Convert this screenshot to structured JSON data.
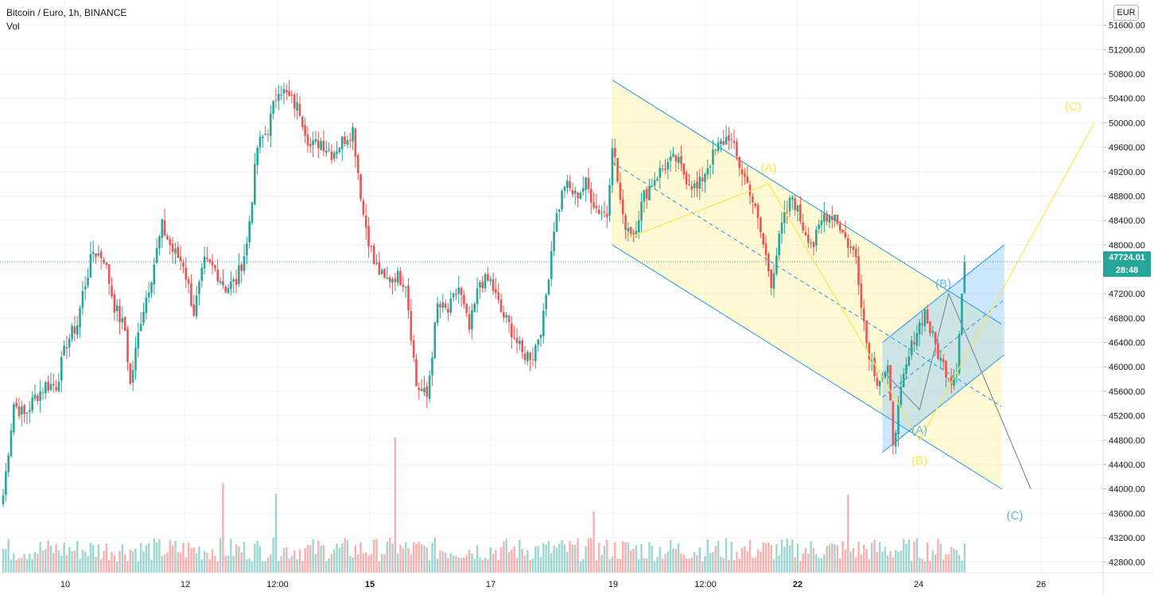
{
  "legend": {
    "symbol": "Bitcoin / Euro, 1h, BINANCE",
    "volume": "Vol"
  },
  "currency_badge": "EUR",
  "last_price": {
    "value": "47724.01",
    "countdown": "28:48"
  },
  "colors": {
    "up": "#26a69a",
    "down": "#ef5350",
    "channel": "#2196f3",
    "channel_fill": "#fff59d",
    "wave_yellow": "#fbe54d",
    "wave_blue": "#64b5f6",
    "grid": "#eef0f3"
  },
  "chart_data": {
    "type": "candlestick",
    "title": "Bitcoin / Euro, 1h, BINANCE",
    "ylim": [
      42600,
      51700
    ],
    "y_ticks": [
      51600,
      51200,
      50800,
      50400,
      50000,
      49600,
      49200,
      48800,
      48400,
      48000,
      47600,
      47200,
      46800,
      46400,
      46000,
      45600,
      45200,
      44800,
      44400,
      44000,
      43600,
      43200,
      42800
    ],
    "y_tick_labels": [
      "51600.00",
      "51200.00",
      "50800.00",
      "50400.00",
      "50000.00",
      "49600.00",
      "49200.00",
      "48800.00",
      "48400.00",
      "48000.00",
      "47600.00",
      "47200.00",
      "46800.00",
      "46400.00",
      "46000.00",
      "45600.00",
      "45200.00",
      "44800.00",
      "44400.00",
      "44000.00",
      "43600.00",
      "43200.00",
      "42800.00"
    ],
    "x_ticks": [
      "10",
      "12",
      "12:00",
      "15",
      "17",
      "19",
      "12:00",
      "22",
      "24",
      "26"
    ],
    "x_ticks_bold": [
      false,
      false,
      false,
      true,
      false,
      false,
      false,
      true,
      false,
      false
    ],
    "price_anchors": [
      [
        0,
        43900
      ],
      [
        4,
        45400
      ],
      [
        8,
        45200
      ],
      [
        12,
        45500
      ],
      [
        16,
        45700
      ],
      [
        20,
        45700
      ],
      [
        24,
        46400
      ],
      [
        28,
        46700
      ],
      [
        30,
        47200
      ],
      [
        34,
        47900
      ],
      [
        38,
        47800
      ],
      [
        42,
        47000
      ],
      [
        46,
        46600
      ],
      [
        48,
        45700
      ],
      [
        52,
        46800
      ],
      [
        56,
        47500
      ],
      [
        60,
        48300
      ],
      [
        64,
        47900
      ],
      [
        68,
        47700
      ],
      [
        72,
        46900
      ],
      [
        76,
        47700
      ],
      [
        80,
        47600
      ],
      [
        84,
        47300
      ],
      [
        88,
        47400
      ],
      [
        92,
        48000
      ],
      [
        96,
        49600
      ],
      [
        100,
        49900
      ],
      [
        104,
        50600
      ],
      [
        108,
        50400
      ],
      [
        112,
        50200
      ],
      [
        116,
        49600
      ],
      [
        120,
        49700
      ],
      [
        124,
        49500
      ],
      [
        128,
        49700
      ],
      [
        132,
        49900
      ],
      [
        136,
        48500
      ],
      [
        140,
        47700
      ],
      [
        144,
        47400
      ],
      [
        148,
        47500
      ],
      [
        152,
        47400
      ],
      [
        156,
        45700
      ],
      [
        160,
        45500
      ],
      [
        164,
        47000
      ],
      [
        168,
        46900
      ],
      [
        172,
        47300
      ],
      [
        176,
        46600
      ],
      [
        180,
        47400
      ],
      [
        184,
        47400
      ],
      [
        188,
        46900
      ],
      [
        192,
        46600
      ],
      [
        196,
        46200
      ],
      [
        200,
        46200
      ],
      [
        204,
        46800
      ],
      [
        208,
        48300
      ],
      [
        212,
        49000
      ],
      [
        216,
        48800
      ],
      [
        220,
        49000
      ],
      [
        224,
        48600
      ],
      [
        228,
        48500
      ],
      [
        230,
        49700
      ],
      [
        234,
        48400
      ],
      [
        238,
        48200
      ],
      [
        242,
        48800
      ],
      [
        246,
        49100
      ],
      [
        250,
        49300
      ],
      [
        254,
        49400
      ],
      [
        258,
        49100
      ],
      [
        262,
        48900
      ],
      [
        266,
        49300
      ],
      [
        270,
        49600
      ],
      [
        274,
        49800
      ],
      [
        278,
        49300
      ],
      [
        282,
        48900
      ],
      [
        286,
        48200
      ],
      [
        290,
        47400
      ],
      [
        294,
        48300
      ],
      [
        298,
        48800
      ],
      [
        302,
        48300
      ],
      [
        306,
        48000
      ],
      [
        310,
        48500
      ],
      [
        314,
        48500
      ],
      [
        318,
        48100
      ],
      [
        322,
        47800
      ],
      [
        326,
        46400
      ],
      [
        330,
        45800
      ],
      [
        334,
        45900
      ],
      [
        336,
        44800
      ],
      [
        340,
        45800
      ],
      [
        344,
        46500
      ],
      [
        348,
        46900
      ],
      [
        350,
        46600
      ],
      [
        354,
        46100
      ],
      [
        358,
        45800
      ],
      [
        360,
        46000
      ],
      [
        363,
        47800
      ]
    ],
    "last_close": 47724.01,
    "channels": [
      {
        "name": "yellow-descending-channel",
        "upper": [
          [
            230,
            50700
          ],
          [
            377,
            46700
          ]
        ],
        "lower": [
          [
            230,
            48000
          ],
          [
            377,
            44000
          ]
        ]
      },
      {
        "name": "blue-ascending-channel",
        "upper": [
          [
            332,
            46400
          ],
          [
            378,
            48000
          ]
        ],
        "lower": [
          [
            332,
            44600
          ],
          [
            378,
            46200
          ]
        ]
      }
    ],
    "waves": [
      {
        "name": "yellow",
        "points": [
          [
            235,
            48100
          ],
          [
            289,
            49000
          ],
          [
            346,
            44800
          ],
          [
            412,
            50000
          ]
        ],
        "labels": [
          {
            "text": "(A)",
            "at": [
              289,
              49200
            ]
          },
          {
            "text": "(B)",
            "at": [
              346,
              44400
            ]
          },
          {
            "text": "(C)",
            "at": [
              404,
              50200
            ]
          }
        ]
      },
      {
        "name": "blue",
        "points": [
          [
            333,
            45900
          ],
          [
            346,
            45300
          ],
          [
            357,
            47200
          ],
          [
            388,
            44000
          ]
        ],
        "labels": [
          {
            "text": "(A)",
            "at": [
              346,
              44900
            ]
          },
          {
            "text": "(B)",
            "at": [
              355,
              47300
            ]
          },
          {
            "text": "(C)",
            "at": [
              382,
              43500
            ]
          }
        ]
      }
    ]
  }
}
